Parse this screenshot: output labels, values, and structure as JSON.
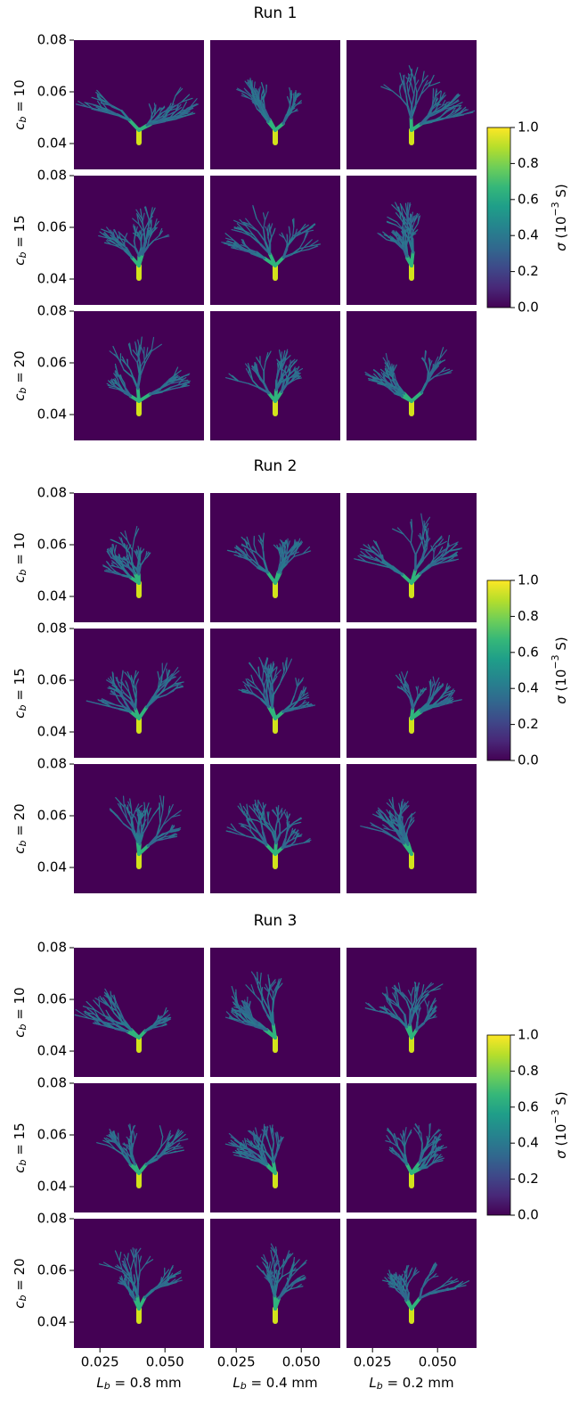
{
  "chart_data": [
    {
      "type": "image-grid",
      "title": "Run 1",
      "rows": [
        {
          "symbol": "c",
          "subscript": "b",
          "text": " = 10"
        },
        {
          "symbol": "c",
          "subscript": "b",
          "text": " = 15"
        },
        {
          "symbol": "c",
          "subscript": "b",
          "text": " = 20"
        }
      ],
      "ylim": [
        0.03,
        0.08
      ],
      "yticks": [
        0.04,
        0.06,
        0.08
      ],
      "colorbar": {
        "label": {
          "symbol": "σ",
          "text": " (10",
          "sup": "−3",
          "end": " S)"
        },
        "lim": [
          0,
          1
        ],
        "ticks": [
          {
            "value": 0,
            "label": "0.0"
          },
          0.2,
          0.4,
          0.6,
          0.8,
          {
            "value": 1,
            "label": "1.0"
          }
        ]
      }
    },
    {
      "type": "image-grid",
      "title": "Run 2",
      "rows": [
        {
          "symbol": "c",
          "subscript": "b",
          "text": " = 10"
        },
        {
          "symbol": "c",
          "subscript": "b",
          "text": " = 15"
        },
        {
          "symbol": "c",
          "subscript": "b",
          "text": " = 20"
        }
      ],
      "ylim": [
        0.03,
        0.08
      ],
      "yticks": [
        0.04,
        0.06,
        0.08
      ],
      "colorbar": {
        "label": {
          "symbol": "σ",
          "text": " (10",
          "sup": "−3",
          "end": " S)"
        },
        "lim": [
          0,
          1
        ],
        "ticks": [
          {
            "value": 0,
            "label": "0.0"
          },
          0.2,
          0.4,
          0.6,
          0.8,
          {
            "value": 1,
            "label": "1.0"
          }
        ]
      }
    },
    {
      "type": "image-grid",
      "title": "Run 3",
      "rows": [
        {
          "symbol": "c",
          "subscript": "b",
          "text": " = 10"
        },
        {
          "symbol": "c",
          "subscript": "b",
          "text": " = 15"
        },
        {
          "symbol": "c",
          "subscript": "b",
          "text": " = 20"
        }
      ],
      "columns": [
        {
          "symbol": "L",
          "subscript": "b",
          "text": " = 0.8 mm"
        },
        {
          "symbol": "L",
          "subscript": "b",
          "text": " = 0.4 mm"
        },
        {
          "symbol": "L",
          "subscript": "b",
          "text": " = 0.2 mm"
        }
      ],
      "xlim": [
        0.015,
        0.065
      ],
      "xticks": [
        0.025,
        {
          "value": 0.05,
          "label": "0.050"
        }
      ],
      "ylim": [
        0.03,
        0.08
      ],
      "yticks": [
        0.04,
        0.06,
        0.08
      ],
      "colorbar": {
        "label": {
          "symbol": "σ",
          "text": " (10",
          "sup": "−3",
          "end": " S)"
        },
        "lim": [
          0,
          1
        ],
        "ticks": [
          {
            "value": 0,
            "label": "0.0"
          },
          0.2,
          0.4,
          0.6,
          0.8,
          {
            "value": 1,
            "label": "1.0"
          }
        ]
      }
    }
  ]
}
